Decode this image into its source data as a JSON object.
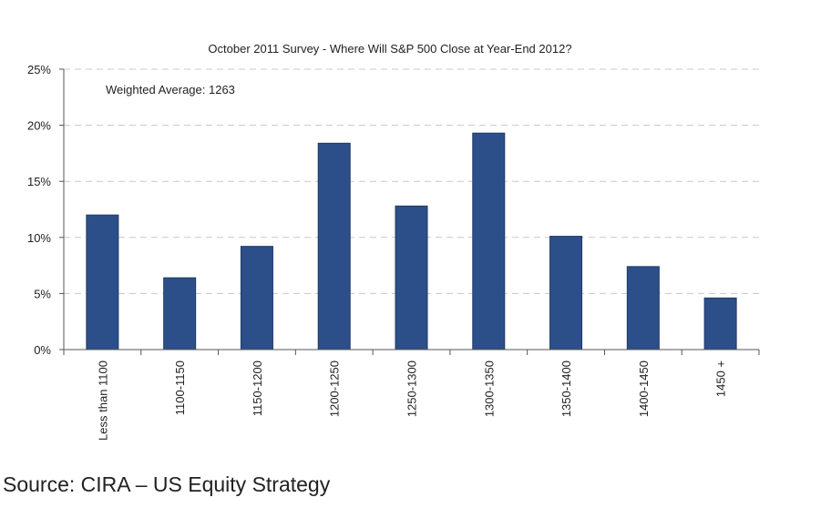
{
  "chart_data": {
    "type": "bar",
    "title": "October 2011 Survey - Where Will S&P 500 Close at Year-End 2012?",
    "categories": [
      "Less than 1100",
      "1100-1150",
      "1150-1200",
      "1200-1250",
      "1250-1300",
      "1300-1350",
      "1350-1400",
      "1400-1450",
      "1450 +"
    ],
    "values": [
      12.0,
      6.4,
      9.2,
      18.4,
      12.8,
      19.3,
      10.1,
      7.4,
      4.6
    ],
    "ylim": [
      0,
      25
    ],
    "y_ticks": [
      0,
      5,
      10,
      15,
      20,
      25
    ],
    "y_tick_labels": [
      "0%",
      "5%",
      "10%",
      "15%",
      "20%",
      "25%"
    ],
    "annotation": "Weighted Average: 1263",
    "grid": "horizontal dashed",
    "legend": "none",
    "bar_color": "#2c4f8a",
    "xlabel": "",
    "ylabel": ""
  },
  "source": "Source: CIRA – US Equity Strategy"
}
